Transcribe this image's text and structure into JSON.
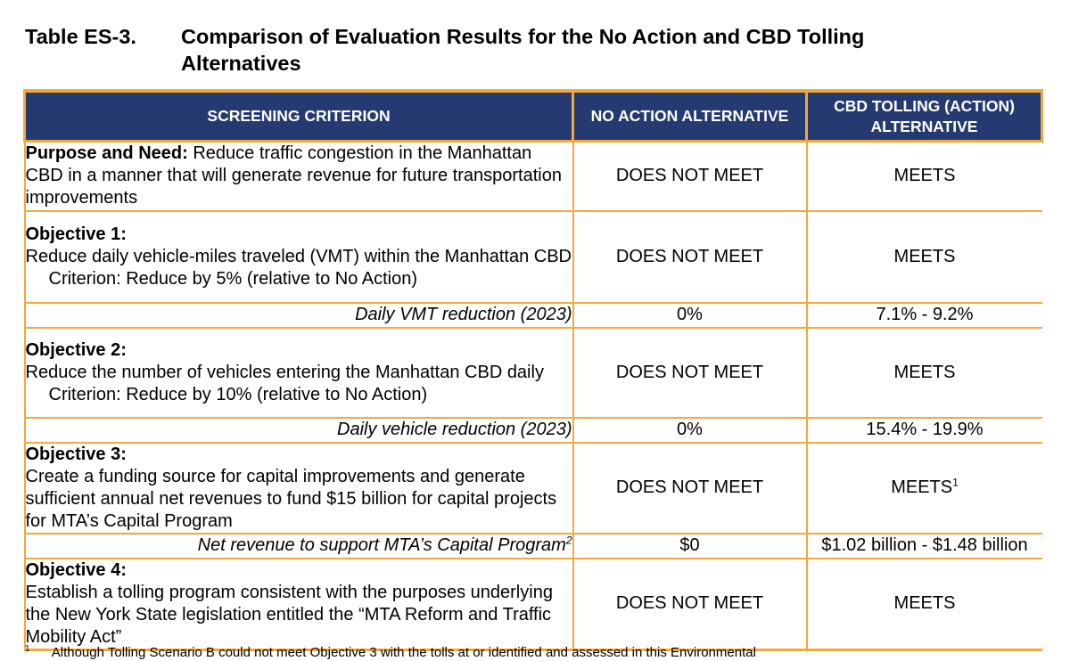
{
  "title": {
    "number": "Table ES-3.",
    "text": "Comparison of Evaluation Results for the No Action and CBD Tolling Alternatives"
  },
  "headers": {
    "criterion": "SCREENING CRITERION",
    "no_action": "NO ACTION ALTERNATIVE",
    "cbd_line1": "CBD TOLLING (ACTION)",
    "cbd_line2": "ALTERNATIVE"
  },
  "rows": {
    "purpose": {
      "label": "Purpose and Need:",
      "text": " Reduce traffic congestion in the Manhattan CBD in a manner that will generate revenue for future transportation improvements",
      "no_action": "DOES NOT MEET",
      "cbd": "MEETS"
    },
    "obj1": {
      "label": "Objective 1:",
      "text": "Reduce daily vehicle-miles traveled (VMT) within the Manhattan CBD",
      "criterion": "Criterion: Reduce by 5% (relative to No Action)",
      "no_action": "DOES NOT MEET",
      "cbd": "MEETS",
      "metric_label": "Daily VMT reduction (2023)",
      "metric_no_action": "0%",
      "metric_cbd": "7.1% - 9.2%"
    },
    "obj2": {
      "label": "Objective 2:",
      "text": "Reduce the number of vehicles entering the Manhattan CBD daily",
      "criterion": "Criterion: Reduce by 10% (relative to No Action)",
      "no_action": "DOES NOT MEET",
      "cbd": "MEETS",
      "metric_label": "Daily vehicle reduction (2023)",
      "metric_no_action": "0%",
      "metric_cbd": "15.4% - 19.9%"
    },
    "obj3": {
      "label": "Objective 3:",
      "text": "Create a funding source for capital improvements and generate sufficient annual net revenues to fund $15 billion for capital projects for MTA’s Capital Program",
      "no_action": "DOES NOT MEET",
      "cbd": "MEETS",
      "cbd_sup": "1",
      "metric_label": "Net revenue to support MTA’s Capital Program",
      "metric_label_sup": "2",
      "metric_no_action": "$0",
      "metric_cbd": "$1.02 billion - $1.48 billion"
    },
    "obj4": {
      "label": "Objective 4:",
      "text": "Establish a tolling program consistent with the purposes underlying the New York State legislation entitled the “MTA Reform and Traffic Mobility Act”",
      "no_action": "DOES NOT MEET",
      "cbd": "MEETS"
    }
  },
  "footnote": {
    "marker": "1",
    "text": "Although Tolling Scenario B could not meet Objective 3 with the tolls at or identified and assessed in this Environmental"
  }
}
